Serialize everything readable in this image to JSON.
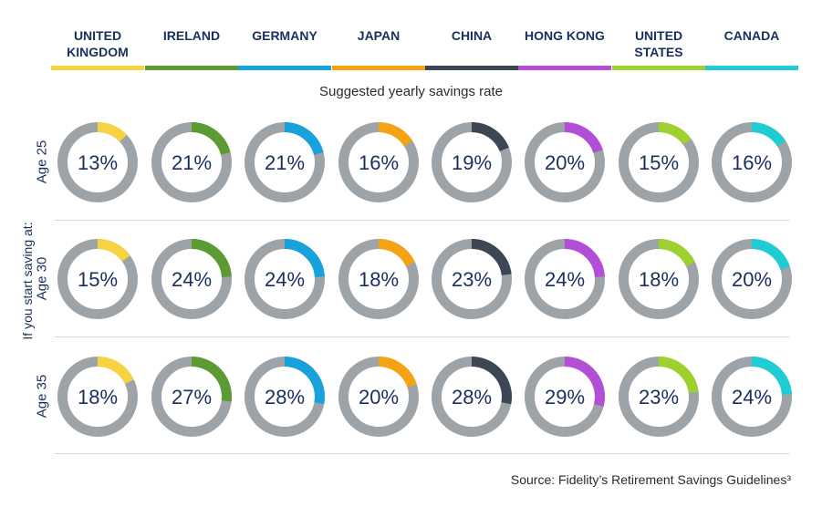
{
  "chart_data": {
    "type": "donut-grid",
    "title": "Suggested yearly savings rate",
    "row_axis_label": "If you start saving at:",
    "countries": [
      {
        "name": "UNITED KINGDOM",
        "color": "#f7d341"
      },
      {
        "name": "IRELAND",
        "color": "#5c9a34"
      },
      {
        "name": "GERMANY",
        "color": "#17a2dc"
      },
      {
        "name": "JAPAN",
        "color": "#f6a313"
      },
      {
        "name": "CHINA",
        "color": "#3c4654"
      },
      {
        "name": "HONG KONG",
        "color": "#b24fd6"
      },
      {
        "name": "UNITED STATES",
        "color": "#9ed12e"
      },
      {
        "name": "CANADA",
        "color": "#20ccd4"
      }
    ],
    "rows": [
      {
        "label": "Age 25",
        "values": [
          13,
          21,
          21,
          16,
          19,
          20,
          15,
          16
        ]
      },
      {
        "label": "Age 30",
        "values": [
          15,
          24,
          24,
          18,
          23,
          24,
          18,
          20
        ]
      },
      {
        "label": "Age 35",
        "values": [
          18,
          27,
          28,
          20,
          28,
          29,
          23,
          24
        ]
      }
    ],
    "unit": "%",
    "source": "Source: Fidelity’s Retirement Savings Guidelines³"
  },
  "colors": {
    "track": "#9ea3a8",
    "text": "#1b2f5e"
  }
}
